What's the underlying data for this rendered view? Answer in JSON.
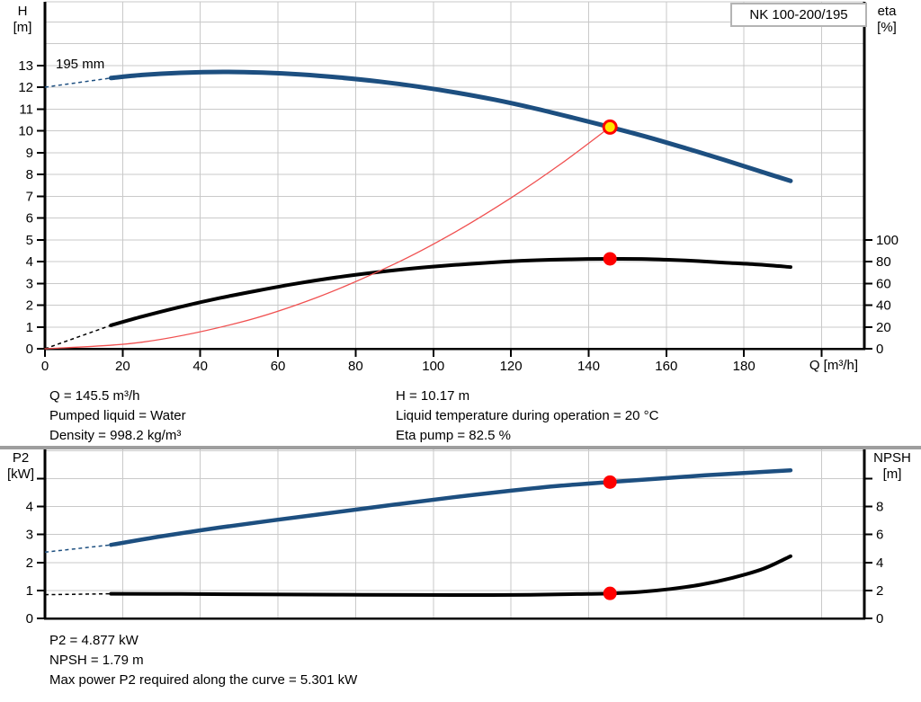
{
  "title_box": {
    "model": "NK 100-200/195"
  },
  "colors": {
    "curve_blue": "#1d4f80",
    "curve_black": "#000000",
    "system_red": "#f05050",
    "marker_red": "#ff0000",
    "marker_yellow": "#ffe600",
    "grid": "#c9c9c9",
    "axis": "#000000",
    "separator": "#9e9e9e",
    "box_border": "#b4b4b4"
  },
  "annotations": {
    "q": "Q = 145.5 m³/h",
    "pumped_liquid": "Pumped liquid = Water",
    "density": "Density = 998.2 kg/m³",
    "h": "H = 10.17 m",
    "temperature": "Liquid temperature during operation = 20 °C",
    "eta_pump": "Eta pump = 82.5 %",
    "p2": "P2 = 4.877 kW",
    "npsh": "NPSH = 1.79 m",
    "max_power": "Max power P2 required along the curve = 5.301 kW"
  },
  "chart_data": [
    {
      "id": "head-efficiency-chart",
      "type": "line",
      "impeller_label": "195 mm",
      "y_left_label_1": "H",
      "y_left_label_2": "[m]",
      "y_right_label_1": "eta",
      "y_right_label_2": "[%]",
      "x_label": "Q [m³/h]",
      "x_axis": {
        "min": 0,
        "max": 211,
        "grid_ticks": [
          20,
          40,
          60,
          80,
          100,
          120,
          140,
          160,
          180,
          200
        ],
        "labeled_ticks": [
          0,
          20,
          40,
          60,
          80,
          100,
          120,
          140,
          160,
          180
        ],
        "unlabeled_ticks": [
          200
        ]
      },
      "y_left": {
        "min": 0,
        "labeled_ticks": [
          0,
          1,
          2,
          3,
          4,
          5,
          6,
          7,
          8,
          9,
          10,
          11,
          12,
          13
        ],
        "unlabeled_ticks": [],
        "grid_to": 15,
        "top_border": true
      },
      "y_right": {
        "labeled_ticks": [
          0,
          20,
          40,
          60,
          80,
          100
        ],
        "unlabeled_ticks": [],
        "per_left": 20
      },
      "series": [
        {
          "name": "head-curve-195mm",
          "color": "#1d4f80",
          "width": 5,
          "axis": "left",
          "dash_lead": [
            [
              0,
              12.0
            ],
            [
              17,
              12.42
            ]
          ],
          "points": [
            [
              17,
              12.42
            ],
            [
              25,
              12.56
            ],
            [
              35,
              12.66
            ],
            [
              46,
              12.7
            ],
            [
              56,
              12.67
            ],
            [
              66,
              12.58
            ],
            [
              76,
              12.44
            ],
            [
              86,
              12.26
            ],
            [
              96,
              12.03
            ],
            [
              106,
              11.75
            ],
            [
              116,
              11.42
            ],
            [
              126,
              11.03
            ],
            [
              136,
              10.6
            ],
            [
              145.5,
              10.17
            ],
            [
              155,
              9.72
            ],
            [
              165,
              9.2
            ],
            [
              175,
              8.66
            ],
            [
              184,
              8.15
            ],
            [
              192,
              7.7
            ]
          ]
        },
        {
          "name": "efficiency-curve",
          "color": "#000000",
          "width": 4,
          "axis": "right",
          "dash_lead": [
            [
              0,
              0
            ],
            [
              17,
              21.5
            ]
          ],
          "points": [
            [
              17,
              21.5
            ],
            [
              25,
              29.5
            ],
            [
              35,
              38.5
            ],
            [
              45,
              46.5
            ],
            [
              55,
              53.5
            ],
            [
              65,
              60
            ],
            [
              75,
              65.5
            ],
            [
              85,
              70
            ],
            [
              95,
              73.8
            ],
            [
              105,
              76.8
            ],
            [
              115,
              79.2
            ],
            [
              125,
              81
            ],
            [
              135,
              82.1
            ],
            [
              145.5,
              82.5
            ],
            [
              155,
              82.3
            ],
            [
              165,
              81
            ],
            [
              175,
              79
            ],
            [
              184,
              77.2
            ],
            [
              192,
              75
            ]
          ]
        },
        {
          "name": "system-curve",
          "color": "#f05050",
          "width": 1.3,
          "axis": "left",
          "points": [
            [
              0,
              0
            ],
            [
              25,
              0.3
            ],
            [
              50,
              1.2
            ],
            [
              70,
              2.35
            ],
            [
              90,
              3.89
            ],
            [
              105,
              5.29
            ],
            [
              120,
              6.92
            ],
            [
              133,
              8.5
            ],
            [
              145.5,
              10.17
            ]
          ]
        }
      ],
      "markers": [
        {
          "name": "duty-point-eta",
          "axis": "right",
          "q": 145.5,
          "value": 82.5,
          "style": "dot",
          "fill": "#ff0000"
        },
        {
          "name": "duty-point-head",
          "axis": "left",
          "q": 145.5,
          "value": 10.17,
          "style": "ring",
          "fill": "#ffe600",
          "stroke": "#ff0000"
        }
      ]
    },
    {
      "id": "p2-npsh-chart",
      "type": "line",
      "y_left_label_1": "P2",
      "y_left_label_2": "[kW]",
      "y_right_label_1": "NPSH",
      "y_right_label_2": "[m]",
      "x_axis": {
        "min": 0,
        "max": 211,
        "grid_ticks": [
          20,
          40,
          60,
          80,
          100,
          120,
          140,
          160,
          180,
          200
        ],
        "labeled_ticks": [],
        "unlabeled_ticks": []
      },
      "y_left": {
        "min": 0,
        "labeled_ticks": [
          0,
          1,
          2,
          3,
          4
        ],
        "unlabeled_ticks": [
          5
        ],
        "grid_to": 6,
        "top_border": false
      },
      "y_right": {
        "labeled_ticks": [
          0,
          2,
          4,
          6,
          8
        ],
        "unlabeled_ticks": [
          10
        ],
        "per_left": 2
      },
      "series": [
        {
          "name": "p2-curve",
          "color": "#1d4f80",
          "width": 4.5,
          "axis": "left",
          "dash_lead": [
            [
              0,
              2.37
            ],
            [
              17,
              2.63
            ]
          ],
          "points": [
            [
              17,
              2.63
            ],
            [
              30,
              2.94
            ],
            [
              45,
              3.25
            ],
            [
              60,
              3.53
            ],
            [
              75,
              3.8
            ],
            [
              90,
              4.07
            ],
            [
              105,
              4.33
            ],
            [
              120,
              4.57
            ],
            [
              133,
              4.75
            ],
            [
              145.5,
              4.877
            ],
            [
              158,
              5.0
            ],
            [
              170,
              5.12
            ],
            [
              182,
              5.22
            ],
            [
              192,
              5.3
            ]
          ]
        },
        {
          "name": "npsh-curve",
          "color": "#000000",
          "width": 4,
          "axis": "right",
          "dash_lead": [
            [
              0,
              1.7
            ],
            [
              17,
              1.76
            ]
          ],
          "points": [
            [
              17,
              1.76
            ],
            [
              35,
              1.75
            ],
            [
              55,
              1.72
            ],
            [
              75,
              1.7
            ],
            [
              95,
              1.68
            ],
            [
              110,
              1.67
            ],
            [
              125,
              1.69
            ],
            [
              137,
              1.74
            ],
            [
              145.5,
              1.79
            ],
            [
              153,
              1.89
            ],
            [
              161,
              2.1
            ],
            [
              169,
              2.42
            ],
            [
              177,
              2.9
            ],
            [
              185,
              3.55
            ],
            [
              192,
              4.45
            ]
          ]
        }
      ],
      "markers": [
        {
          "name": "duty-point-p2",
          "axis": "left",
          "q": 145.5,
          "value": 4.877,
          "style": "dot",
          "fill": "#ff0000"
        },
        {
          "name": "duty-point-npsh",
          "axis": "right",
          "q": 145.5,
          "value": 1.79,
          "style": "dot",
          "fill": "#ff0000"
        }
      ]
    }
  ]
}
